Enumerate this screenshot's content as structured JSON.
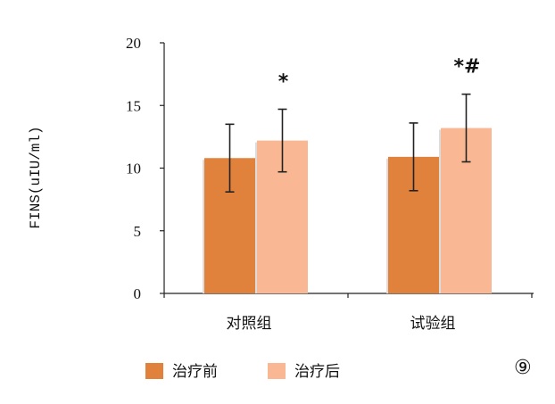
{
  "chart_data": {
    "type": "bar",
    "categories": [
      "对照组",
      "试验组"
    ],
    "series": [
      {
        "name": "治疗前",
        "values": [
          10.8,
          10.9
        ],
        "errors": [
          2.7,
          2.7
        ],
        "color": "#E0813C"
      },
      {
        "name": "治疗后",
        "values": [
          12.2,
          13.2
        ],
        "errors": [
          2.5,
          2.7
        ],
        "color": "#F9B893"
      }
    ],
    "ylabel": "FINS(uIU/ml)",
    "ylim": [
      0,
      20
    ],
    "yticks": [
      0,
      5,
      10,
      15,
      20
    ],
    "grid": false,
    "legend": "bottom-left",
    "annotations": [
      {
        "category": "对照组",
        "series": "治疗后",
        "text": "*"
      },
      {
        "category": "试验组",
        "series": "治疗后",
        "text": "*#"
      }
    ]
  },
  "panel_label": "⑨"
}
